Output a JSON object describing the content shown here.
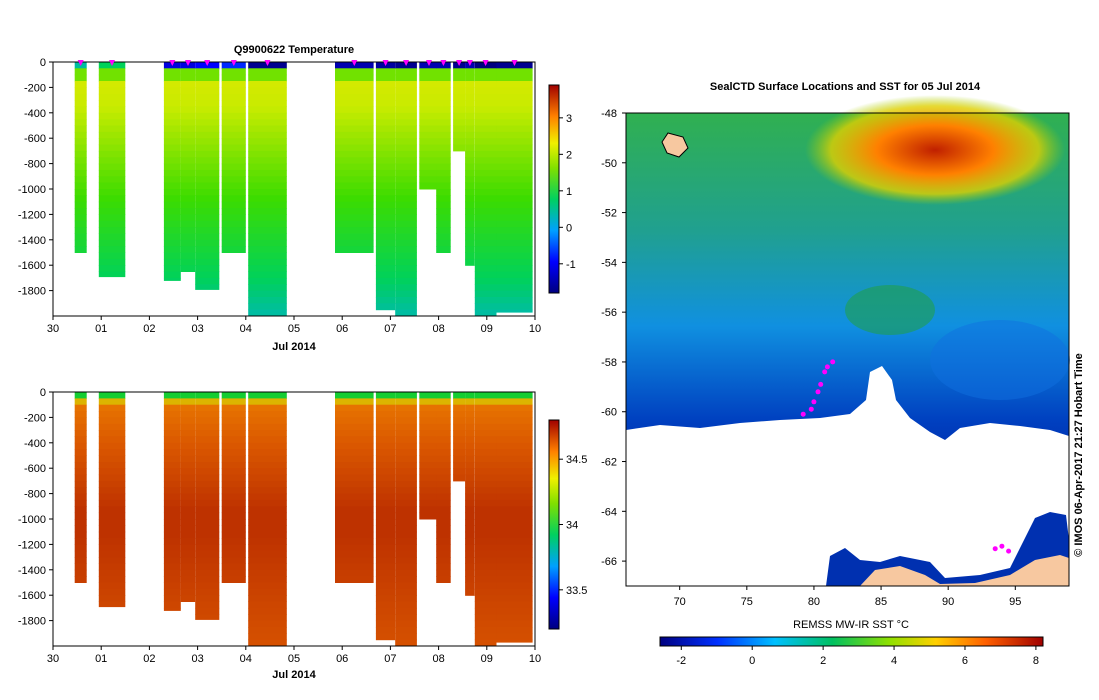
{
  "chart_data": [
    {
      "type": "heatmap",
      "name": "temperature-profile",
      "title": "Q9900622  Temperature",
      "xlabel": "Jul 2014",
      "x_ticks": [
        "30",
        "01",
        "02",
        "03",
        "04",
        "05",
        "06",
        "07",
        "08",
        "09",
        "10"
      ],
      "xlim": [
        30,
        40
      ],
      "ylim": [
        -2000,
        0
      ],
      "y_ticks": [
        "0",
        "-200",
        "-400",
        "-600",
        "-800",
        "-1000",
        "-1200",
        "-1400",
        "-1600",
        "-1800"
      ],
      "colorbar": {
        "ticks": [
          "3",
          "2",
          "1",
          "0",
          "-1"
        ],
        "range": [
          -1.8,
          3.9
        ]
      },
      "profiles": [
        {
          "day": 30.45,
          "w": 0.25,
          "max_depth": 1500,
          "surface": 0.2
        },
        {
          "day": 30.95,
          "w": 0.55,
          "max_depth": 1690,
          "surface": 0.5
        },
        {
          "day": 32.3,
          "w": 0.35,
          "max_depth": 1720,
          "surface": -1.2
        },
        {
          "day": 32.65,
          "w": 0.3,
          "max_depth": 1650,
          "surface": -1.2
        },
        {
          "day": 32.95,
          "w": 0.5,
          "max_depth": 1790,
          "surface": -1.0
        },
        {
          "day": 33.5,
          "w": 0.5,
          "max_depth": 1500,
          "surface": -0.8
        },
        {
          "day": 34.05,
          "w": 0.8,
          "max_depth": 2000,
          "surface": -1.7
        },
        {
          "day": 35.85,
          "w": 0.8,
          "max_depth": 1500,
          "surface": -1.5
        },
        {
          "day": 36.7,
          "w": 0.4,
          "max_depth": 1950,
          "surface": -1.6
        },
        {
          "day": 37.1,
          "w": 0.45,
          "max_depth": 2000,
          "surface": -1.7
        },
        {
          "day": 37.6,
          "w": 0.4,
          "max_depth": 1000,
          "surface": -1.5
        },
        {
          "day": 37.95,
          "w": 0.3,
          "max_depth": 1500,
          "surface": -1.5
        },
        {
          "day": 38.3,
          "w": 0.25,
          "max_depth": 700,
          "surface": -1.7
        },
        {
          "day": 38.55,
          "w": 0.2,
          "max_depth": 1600,
          "surface": -1.5
        },
        {
          "day": 38.75,
          "w": 0.45,
          "max_depth": 2000,
          "surface": -1.8
        },
        {
          "day": 39.2,
          "w": 0.75,
          "max_depth": 1970,
          "surface": -1.7
        }
      ]
    },
    {
      "type": "heatmap",
      "name": "salinity-profile",
      "title": "",
      "xlabel": "Jul 2014",
      "x_ticks": [
        "30",
        "01",
        "02",
        "03",
        "04",
        "05",
        "06",
        "07",
        "08",
        "09",
        "10"
      ],
      "xlim": [
        30,
        40
      ],
      "ylim": [
        -2000,
        0
      ],
      "y_ticks": [
        "0",
        "-200",
        "-400",
        "-600",
        "-800",
        "-1000",
        "-1200",
        "-1400",
        "-1600",
        "-1800"
      ],
      "colorbar": {
        "ticks": [
          "34.5",
          "34",
          "33.5"
        ],
        "range": [
          33.2,
          34.8
        ]
      },
      "profiles": [
        {
          "day": 30.45,
          "w": 0.25,
          "max_depth": 1500
        },
        {
          "day": 30.95,
          "w": 0.55,
          "max_depth": 1690
        },
        {
          "day": 32.3,
          "w": 0.35,
          "max_depth": 1720
        },
        {
          "day": 32.65,
          "w": 0.3,
          "max_depth": 1650
        },
        {
          "day": 32.95,
          "w": 0.5,
          "max_depth": 1790
        },
        {
          "day": 33.5,
          "w": 0.5,
          "max_depth": 1500
        },
        {
          "day": 34.05,
          "w": 0.8,
          "max_depth": 2000
        },
        {
          "day": 35.85,
          "w": 0.8,
          "max_depth": 1500
        },
        {
          "day": 36.7,
          "w": 0.4,
          "max_depth": 1950
        },
        {
          "day": 37.1,
          "w": 0.45,
          "max_depth": 2000
        },
        {
          "day": 37.6,
          "w": 0.4,
          "max_depth": 1000
        },
        {
          "day": 37.95,
          "w": 0.3,
          "max_depth": 1500
        },
        {
          "day": 38.3,
          "w": 0.25,
          "max_depth": 700
        },
        {
          "day": 38.55,
          "w": 0.2,
          "max_depth": 1600
        },
        {
          "day": 38.75,
          "w": 0.45,
          "max_depth": 2000
        },
        {
          "day": 39.2,
          "w": 0.75,
          "max_depth": 1970
        }
      ]
    },
    {
      "type": "heatmap",
      "name": "sst-map",
      "title": "SealCTD Surface Locations and SST for 05 Jul 2014",
      "x_ticks": [
        "70",
        "75",
        "80",
        "85",
        "90",
        "95"
      ],
      "xlim": [
        66,
        99
      ],
      "y_ticks": [
        "-48",
        "-50",
        "-52",
        "-54",
        "-56",
        "-58",
        "-60",
        "-62",
        "-64",
        "-66"
      ],
      "ylim": [
        -67,
        -48
      ],
      "colorbar": {
        "label": "REMSS MW-IR SST °C",
        "ticks": [
          "-2",
          "0",
          "2",
          "4",
          "6",
          "8"
        ],
        "range": [
          -2.6,
          8.2
        ]
      },
      "track": [
        [
          79.2,
          -60.1
        ],
        [
          79.8,
          -59.9
        ],
        [
          80.0,
          -59.6
        ],
        [
          80.3,
          -59.2
        ],
        [
          80.5,
          -58.9
        ],
        [
          80.8,
          -58.4
        ],
        [
          81.0,
          -58.2
        ],
        [
          81.4,
          -58.0
        ],
        [
          93.5,
          -65.5
        ],
        [
          94.0,
          -65.4
        ],
        [
          94.5,
          -65.6
        ]
      ]
    }
  ],
  "credit": "© IMOS 06-Apr-2017 21:27 Hobart Time",
  "colors": {
    "profile_marker": "#ff00ff",
    "land": "#f7c8a0"
  }
}
